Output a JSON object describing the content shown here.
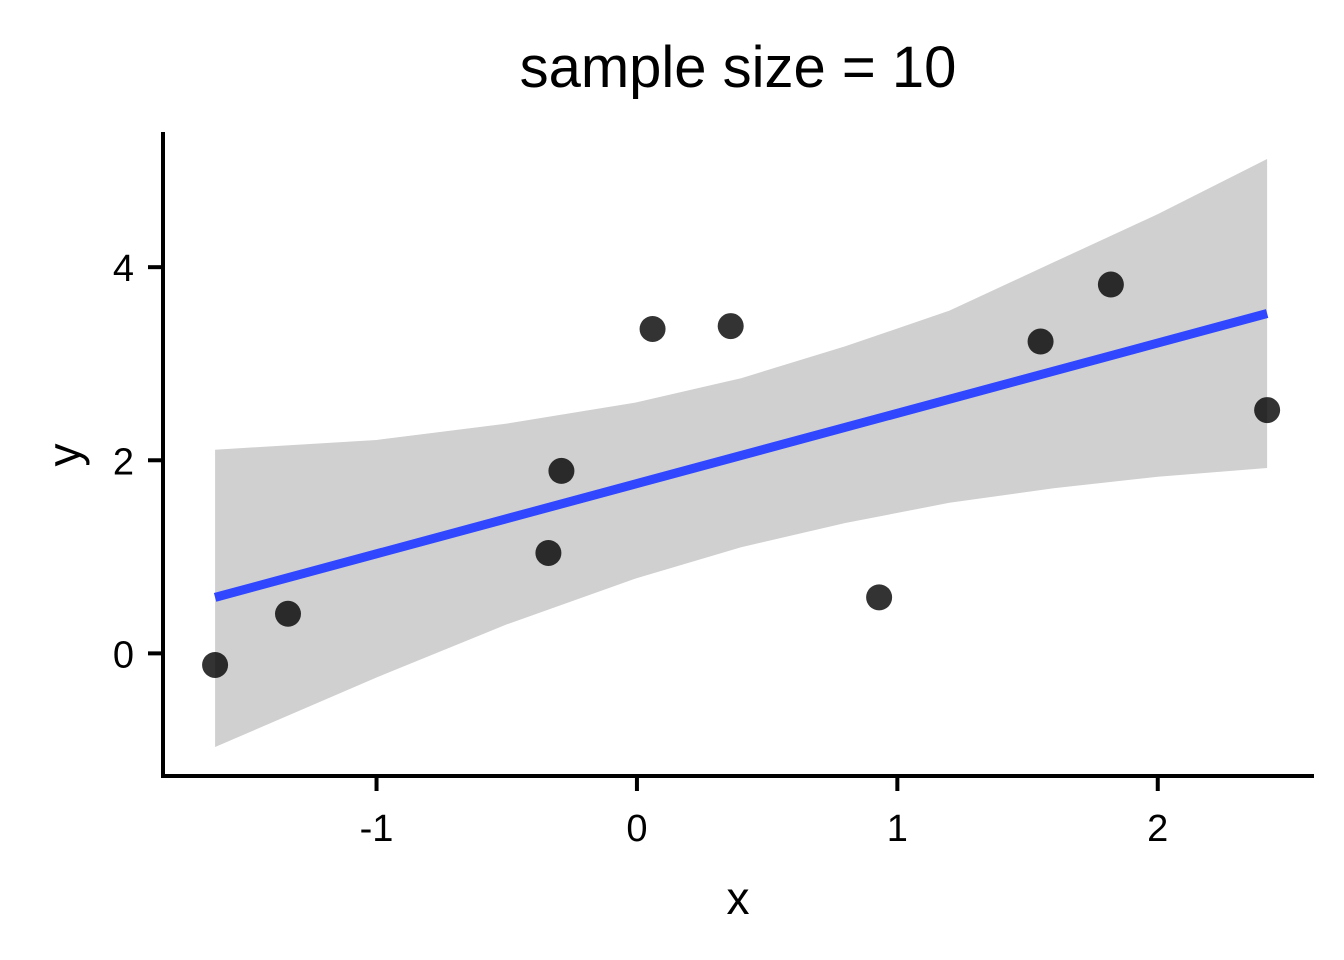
{
  "chart_data": {
    "type": "scatter",
    "title": "sample size = 10",
    "xlabel": "x",
    "ylabel": "y",
    "xlim": [
      -1.82,
      2.6
    ],
    "ylim": [
      -1.27,
      5.4
    ],
    "x_ticks": [
      -1,
      0,
      1,
      2
    ],
    "x_tick_labels": [
      "-1",
      "0",
      "1",
      "2"
    ],
    "y_ticks": [
      0,
      2,
      4
    ],
    "y_tick_labels": [
      "0",
      "2",
      "4"
    ],
    "grid": false,
    "points": [
      {
        "x": -1.62,
        "y": -0.12
      },
      {
        "x": -1.34,
        "y": 0.41
      },
      {
        "x": -0.34,
        "y": 1.04
      },
      {
        "x": -0.29,
        "y": 1.89
      },
      {
        "x": 0.06,
        "y": 3.36
      },
      {
        "x": 0.36,
        "y": 3.39
      },
      {
        "x": 0.93,
        "y": 0.58
      },
      {
        "x": 1.55,
        "y": 3.23
      },
      {
        "x": 1.82,
        "y": 3.82
      },
      {
        "x": 2.42,
        "y": 2.52
      }
    ],
    "fit_line": {
      "x": [
        -1.62,
        2.42
      ],
      "y": [
        0.58,
        3.52
      ]
    },
    "confidence_band": {
      "x": [
        -1.62,
        -1.0,
        -0.5,
        0.0,
        0.4,
        0.8,
        1.2,
        1.6,
        2.0,
        2.42
      ],
      "lower": [
        -0.97,
        -0.25,
        0.3,
        0.78,
        1.1,
        1.35,
        1.56,
        1.71,
        1.83,
        1.92
      ],
      "upper": [
        2.11,
        2.21,
        2.38,
        2.6,
        2.85,
        3.18,
        3.55,
        4.05,
        4.55,
        5.12
      ]
    },
    "colors": {
      "points": "#000000",
      "fit_line": "#3047ff",
      "confidence_band": "#d0d0d0"
    }
  }
}
